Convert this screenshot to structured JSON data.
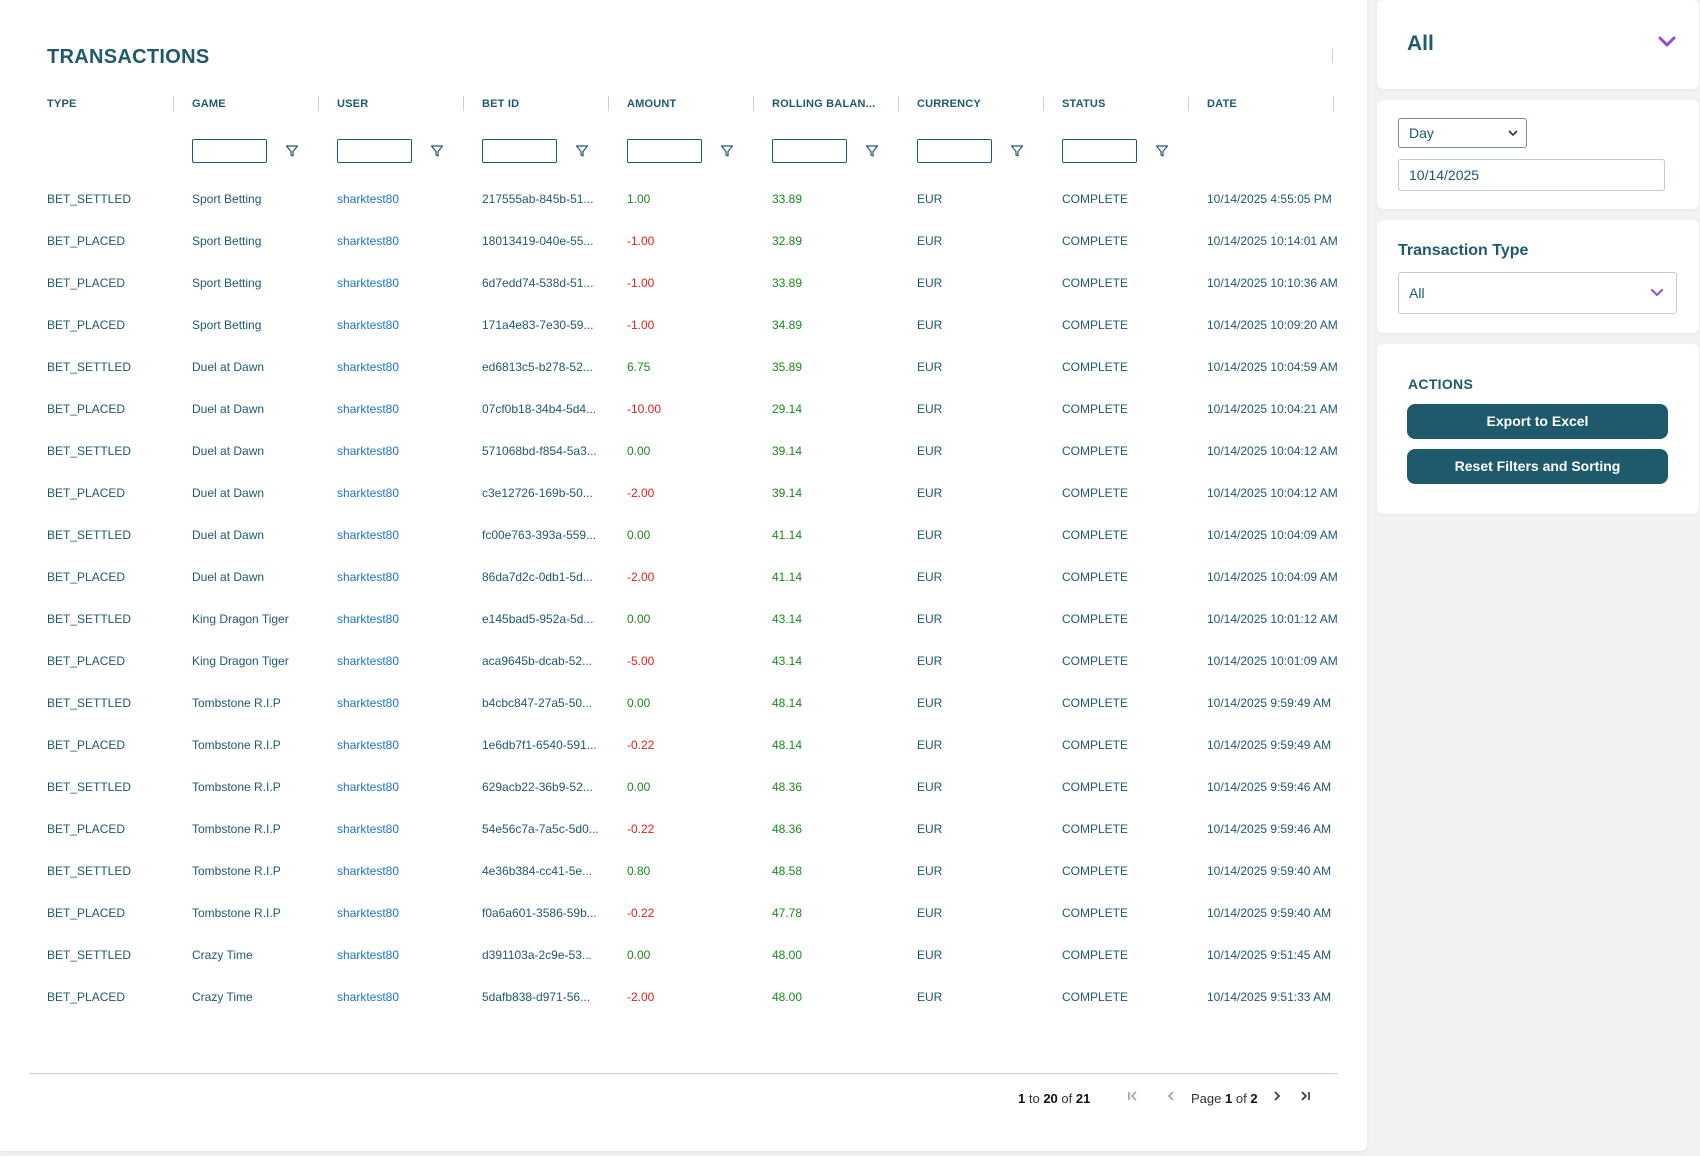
{
  "title": "TRANSACTIONS",
  "columns": [
    "TYPE",
    "GAME",
    "USER",
    "BET ID",
    "AMOUNT",
    "ROLLING BALAN...",
    "CURRENCY",
    "STATUS",
    "DATE"
  ],
  "rows": [
    {
      "type": "BET_SETTLED",
      "game": "Sport Betting",
      "user": "sharktest80",
      "bet_id": "217555ab-845b-51...",
      "amount": "1.00",
      "balance": "33.89",
      "currency": "EUR",
      "status": "COMPLETE",
      "date": "10/14/2025 4:55:05 PM"
    },
    {
      "type": "BET_PLACED",
      "game": "Sport Betting",
      "user": "sharktest80",
      "bet_id": "18013419-040e-55...",
      "amount": "-1.00",
      "balance": "32.89",
      "currency": "EUR",
      "status": "COMPLETE",
      "date": "10/14/2025 10:14:01 AM"
    },
    {
      "type": "BET_PLACED",
      "game": "Sport Betting",
      "user": "sharktest80",
      "bet_id": "6d7edd74-538d-51...",
      "amount": "-1.00",
      "balance": "33.89",
      "currency": "EUR",
      "status": "COMPLETE",
      "date": "10/14/2025 10:10:36 AM"
    },
    {
      "type": "BET_PLACED",
      "game": "Sport Betting",
      "user": "sharktest80",
      "bet_id": "171a4e83-7e30-59...",
      "amount": "-1.00",
      "balance": "34.89",
      "currency": "EUR",
      "status": "COMPLETE",
      "date": "10/14/2025 10:09:20 AM"
    },
    {
      "type": "BET_SETTLED",
      "game": "Duel at Dawn",
      "user": "sharktest80",
      "bet_id": "ed6813c5-b278-52...",
      "amount": "6.75",
      "balance": "35.89",
      "currency": "EUR",
      "status": "COMPLETE",
      "date": "10/14/2025 10:04:59 AM"
    },
    {
      "type": "BET_PLACED",
      "game": "Duel at Dawn",
      "user": "sharktest80",
      "bet_id": "07cf0b18-34b4-5d4...",
      "amount": "-10.00",
      "balance": "29.14",
      "currency": "EUR",
      "status": "COMPLETE",
      "date": "10/14/2025 10:04:21 AM"
    },
    {
      "type": "BET_SETTLED",
      "game": "Duel at Dawn",
      "user": "sharktest80",
      "bet_id": "571068bd-f854-5a3...",
      "amount": "0.00",
      "balance": "39.14",
      "currency": "EUR",
      "status": "COMPLETE",
      "date": "10/14/2025 10:04:12 AM"
    },
    {
      "type": "BET_PLACED",
      "game": "Duel at Dawn",
      "user": "sharktest80",
      "bet_id": "c3e12726-169b-50...",
      "amount": "-2.00",
      "balance": "39.14",
      "currency": "EUR",
      "status": "COMPLETE",
      "date": "10/14/2025 10:04:12 AM"
    },
    {
      "type": "BET_SETTLED",
      "game": "Duel at Dawn",
      "user": "sharktest80",
      "bet_id": "fc00e763-393a-559...",
      "amount": "0.00",
      "balance": "41.14",
      "currency": "EUR",
      "status": "COMPLETE",
      "date": "10/14/2025 10:04:09 AM"
    },
    {
      "type": "BET_PLACED",
      "game": "Duel at Dawn",
      "user": "sharktest80",
      "bet_id": "86da7d2c-0db1-5d...",
      "amount": "-2.00",
      "balance": "41.14",
      "currency": "EUR",
      "status": "COMPLETE",
      "date": "10/14/2025 10:04:09 AM"
    },
    {
      "type": "BET_SETTLED",
      "game": "King Dragon Tiger",
      "user": "sharktest80",
      "bet_id": "e145bad5-952a-5d...",
      "amount": "0.00",
      "balance": "43.14",
      "currency": "EUR",
      "status": "COMPLETE",
      "date": "10/14/2025 10:01:12 AM"
    },
    {
      "type": "BET_PLACED",
      "game": "King Dragon Tiger",
      "user": "sharktest80",
      "bet_id": "aca9645b-dcab-52...",
      "amount": "-5.00",
      "balance": "43.14",
      "currency": "EUR",
      "status": "COMPLETE",
      "date": "10/14/2025 10:01:09 AM"
    },
    {
      "type": "BET_SETTLED",
      "game": "Tombstone R.I.P",
      "user": "sharktest80",
      "bet_id": "b4cbc847-27a5-50...",
      "amount": "0.00",
      "balance": "48.14",
      "currency": "EUR",
      "status": "COMPLETE",
      "date": "10/14/2025 9:59:49 AM"
    },
    {
      "type": "BET_PLACED",
      "game": "Tombstone R.I.P",
      "user": "sharktest80",
      "bet_id": "1e6db7f1-6540-591...",
      "amount": "-0.22",
      "balance": "48.14",
      "currency": "EUR",
      "status": "COMPLETE",
      "date": "10/14/2025 9:59:49 AM"
    },
    {
      "type": "BET_SETTLED",
      "game": "Tombstone R.I.P",
      "user": "sharktest80",
      "bet_id": "629acb22-36b9-52...",
      "amount": "0.00",
      "balance": "48.36",
      "currency": "EUR",
      "status": "COMPLETE",
      "date": "10/14/2025 9:59:46 AM"
    },
    {
      "type": "BET_PLACED",
      "game": "Tombstone R.I.P",
      "user": "sharktest80",
      "bet_id": "54e56c7a-7a5c-5d0...",
      "amount": "-0.22",
      "balance": "48.36",
      "currency": "EUR",
      "status": "COMPLETE",
      "date": "10/14/2025 9:59:46 AM"
    },
    {
      "type": "BET_SETTLED",
      "game": "Tombstone R.I.P",
      "user": "sharktest80",
      "bet_id": "4e36b384-cc41-5e...",
      "amount": "0.80",
      "balance": "48.58",
      "currency": "EUR",
      "status": "COMPLETE",
      "date": "10/14/2025 9:59:40 AM"
    },
    {
      "type": "BET_PLACED",
      "game": "Tombstone R.I.P",
      "user": "sharktest80",
      "bet_id": "f0a6a601-3586-59b...",
      "amount": "-0.22",
      "balance": "47.78",
      "currency": "EUR",
      "status": "COMPLETE",
      "date": "10/14/2025 9:59:40 AM"
    },
    {
      "type": "BET_SETTLED",
      "game": "Crazy Time",
      "user": "sharktest80",
      "bet_id": "d391103a-2c9e-53...",
      "amount": "0.00",
      "balance": "48.00",
      "currency": "EUR",
      "status": "COMPLETE",
      "date": "10/14/2025 9:51:45 AM"
    },
    {
      "type": "BET_PLACED",
      "game": "Crazy Time",
      "user": "sharktest80",
      "bet_id": "5dafb838-d971-56...",
      "amount": "-2.00",
      "balance": "48.00",
      "currency": "EUR",
      "status": "COMPLETE",
      "date": "10/14/2025 9:51:33 AM"
    }
  ],
  "pagination": {
    "range_start": "1",
    "to_label": "to",
    "range_end": "20",
    "of_label": "of",
    "total": "21",
    "page_label": "Page",
    "current_page": "1",
    "page_of_label": "of",
    "total_pages": "2",
    "first_icon": "first-page-icon",
    "prev_icon": "prev-page-icon",
    "next_icon": "next-page-icon",
    "last_icon": "last-page-icon"
  },
  "sidebar": {
    "scope_select": {
      "value": "All"
    },
    "date_filter": {
      "period": "Day",
      "date": "10/14/2025"
    },
    "transaction_type": {
      "label": "Transaction Type",
      "value": "All"
    },
    "actions": {
      "label": "ACTIONS",
      "export_label": "Export to Excel",
      "reset_label": "Reset Filters and Sorting"
    }
  },
  "colors": {
    "primary": "#1e5a6b",
    "link": "#1c74c9",
    "positive": "#1a8a1a",
    "negative": "#e0201c",
    "accent_chevron": "#8a4fd6"
  }
}
